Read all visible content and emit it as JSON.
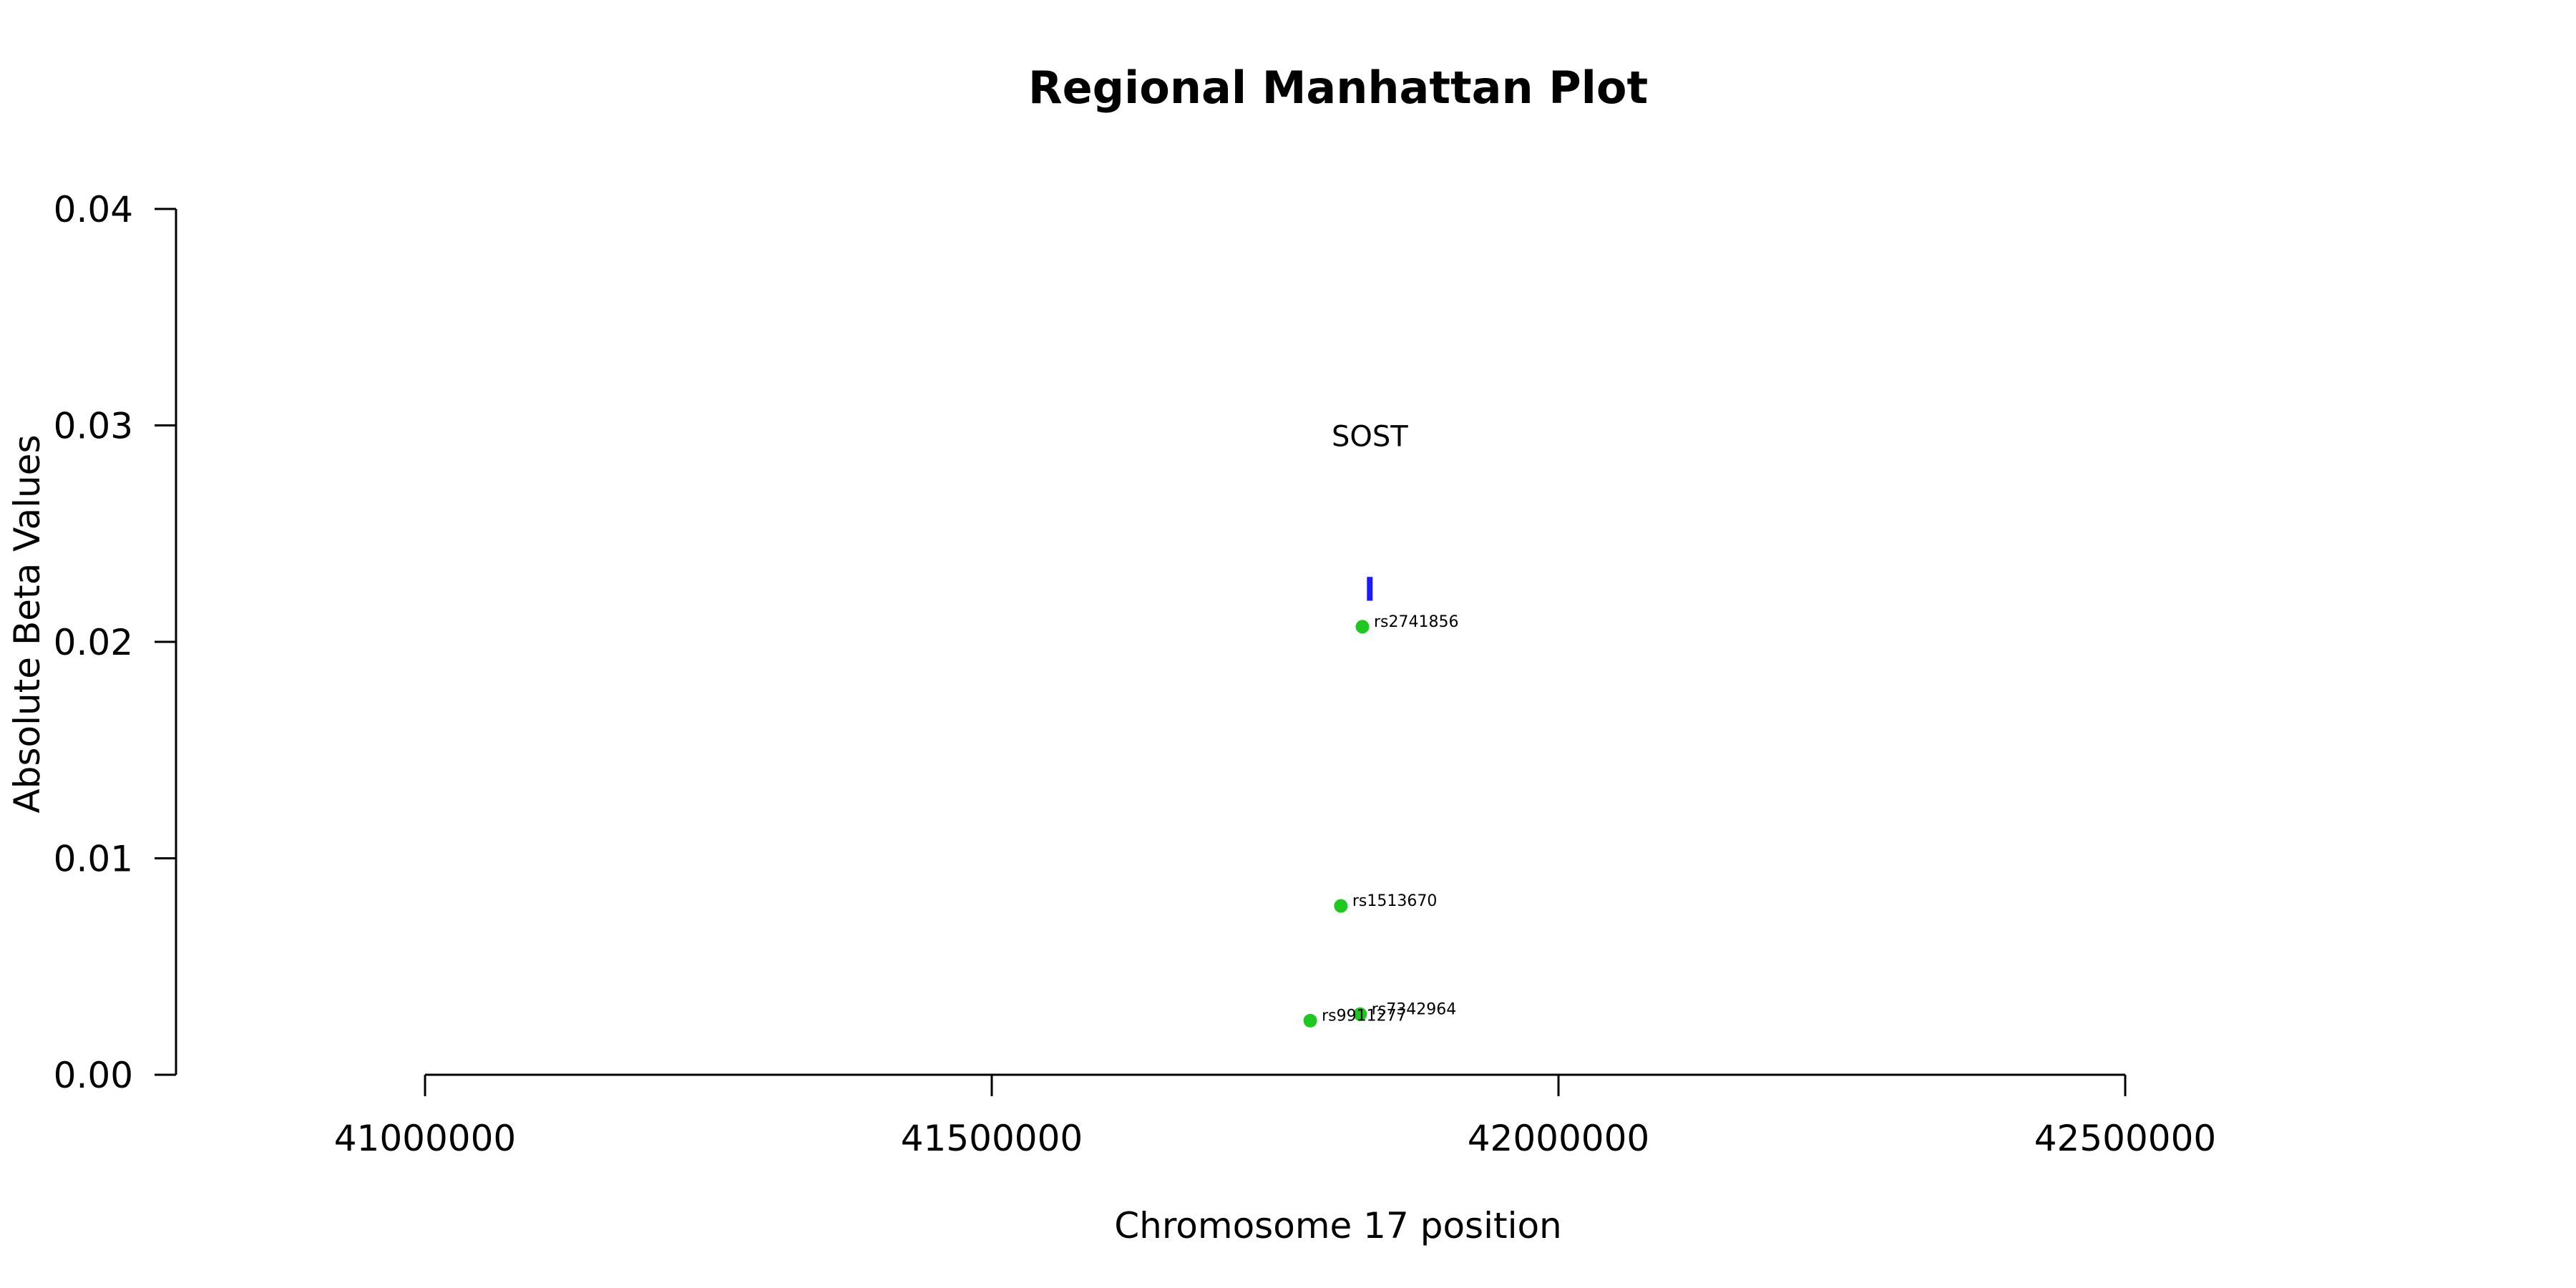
{
  "chart_data": {
    "type": "scatter",
    "title": "Regional Manhattan Plot",
    "xlabel": "Chromosome 17 position",
    "ylabel": "Absolute Beta Values",
    "xlim": [
      40780000,
      42950000
    ],
    "ylim": [
      0,
      0.04
    ],
    "x_ticks": [
      41000000,
      41500000,
      42000000,
      42500000
    ],
    "x_tick_labels": [
      "41000000",
      "41500000",
      "42000000",
      "42500000"
    ],
    "y_ticks": [
      0,
      0.01,
      0.02,
      0.03,
      0.04
    ],
    "y_tick_labels": [
      "0.00",
      "0.01",
      "0.02",
      "0.03",
      "0.04"
    ],
    "grid": false,
    "point_color": "#1ec81e",
    "gene_color": "#1a1aff",
    "points": [
      {
        "label": "rs2741856",
        "x": 41827000,
        "y": 0.0207
      },
      {
        "label": "rs1513670",
        "x": 41808000,
        "y": 0.0078
      },
      {
        "label": "rs7342964",
        "x": 41825000,
        "y": 0.0028
      },
      {
        "label": "rs9911277",
        "x": 41781000,
        "y": 0.0025
      }
    ],
    "genes": [
      {
        "name": "SOST",
        "start": 41831000,
        "end": 41836000,
        "y_low": 0.0219,
        "y_high": 0.023,
        "label_y": 0.0295
      }
    ]
  }
}
